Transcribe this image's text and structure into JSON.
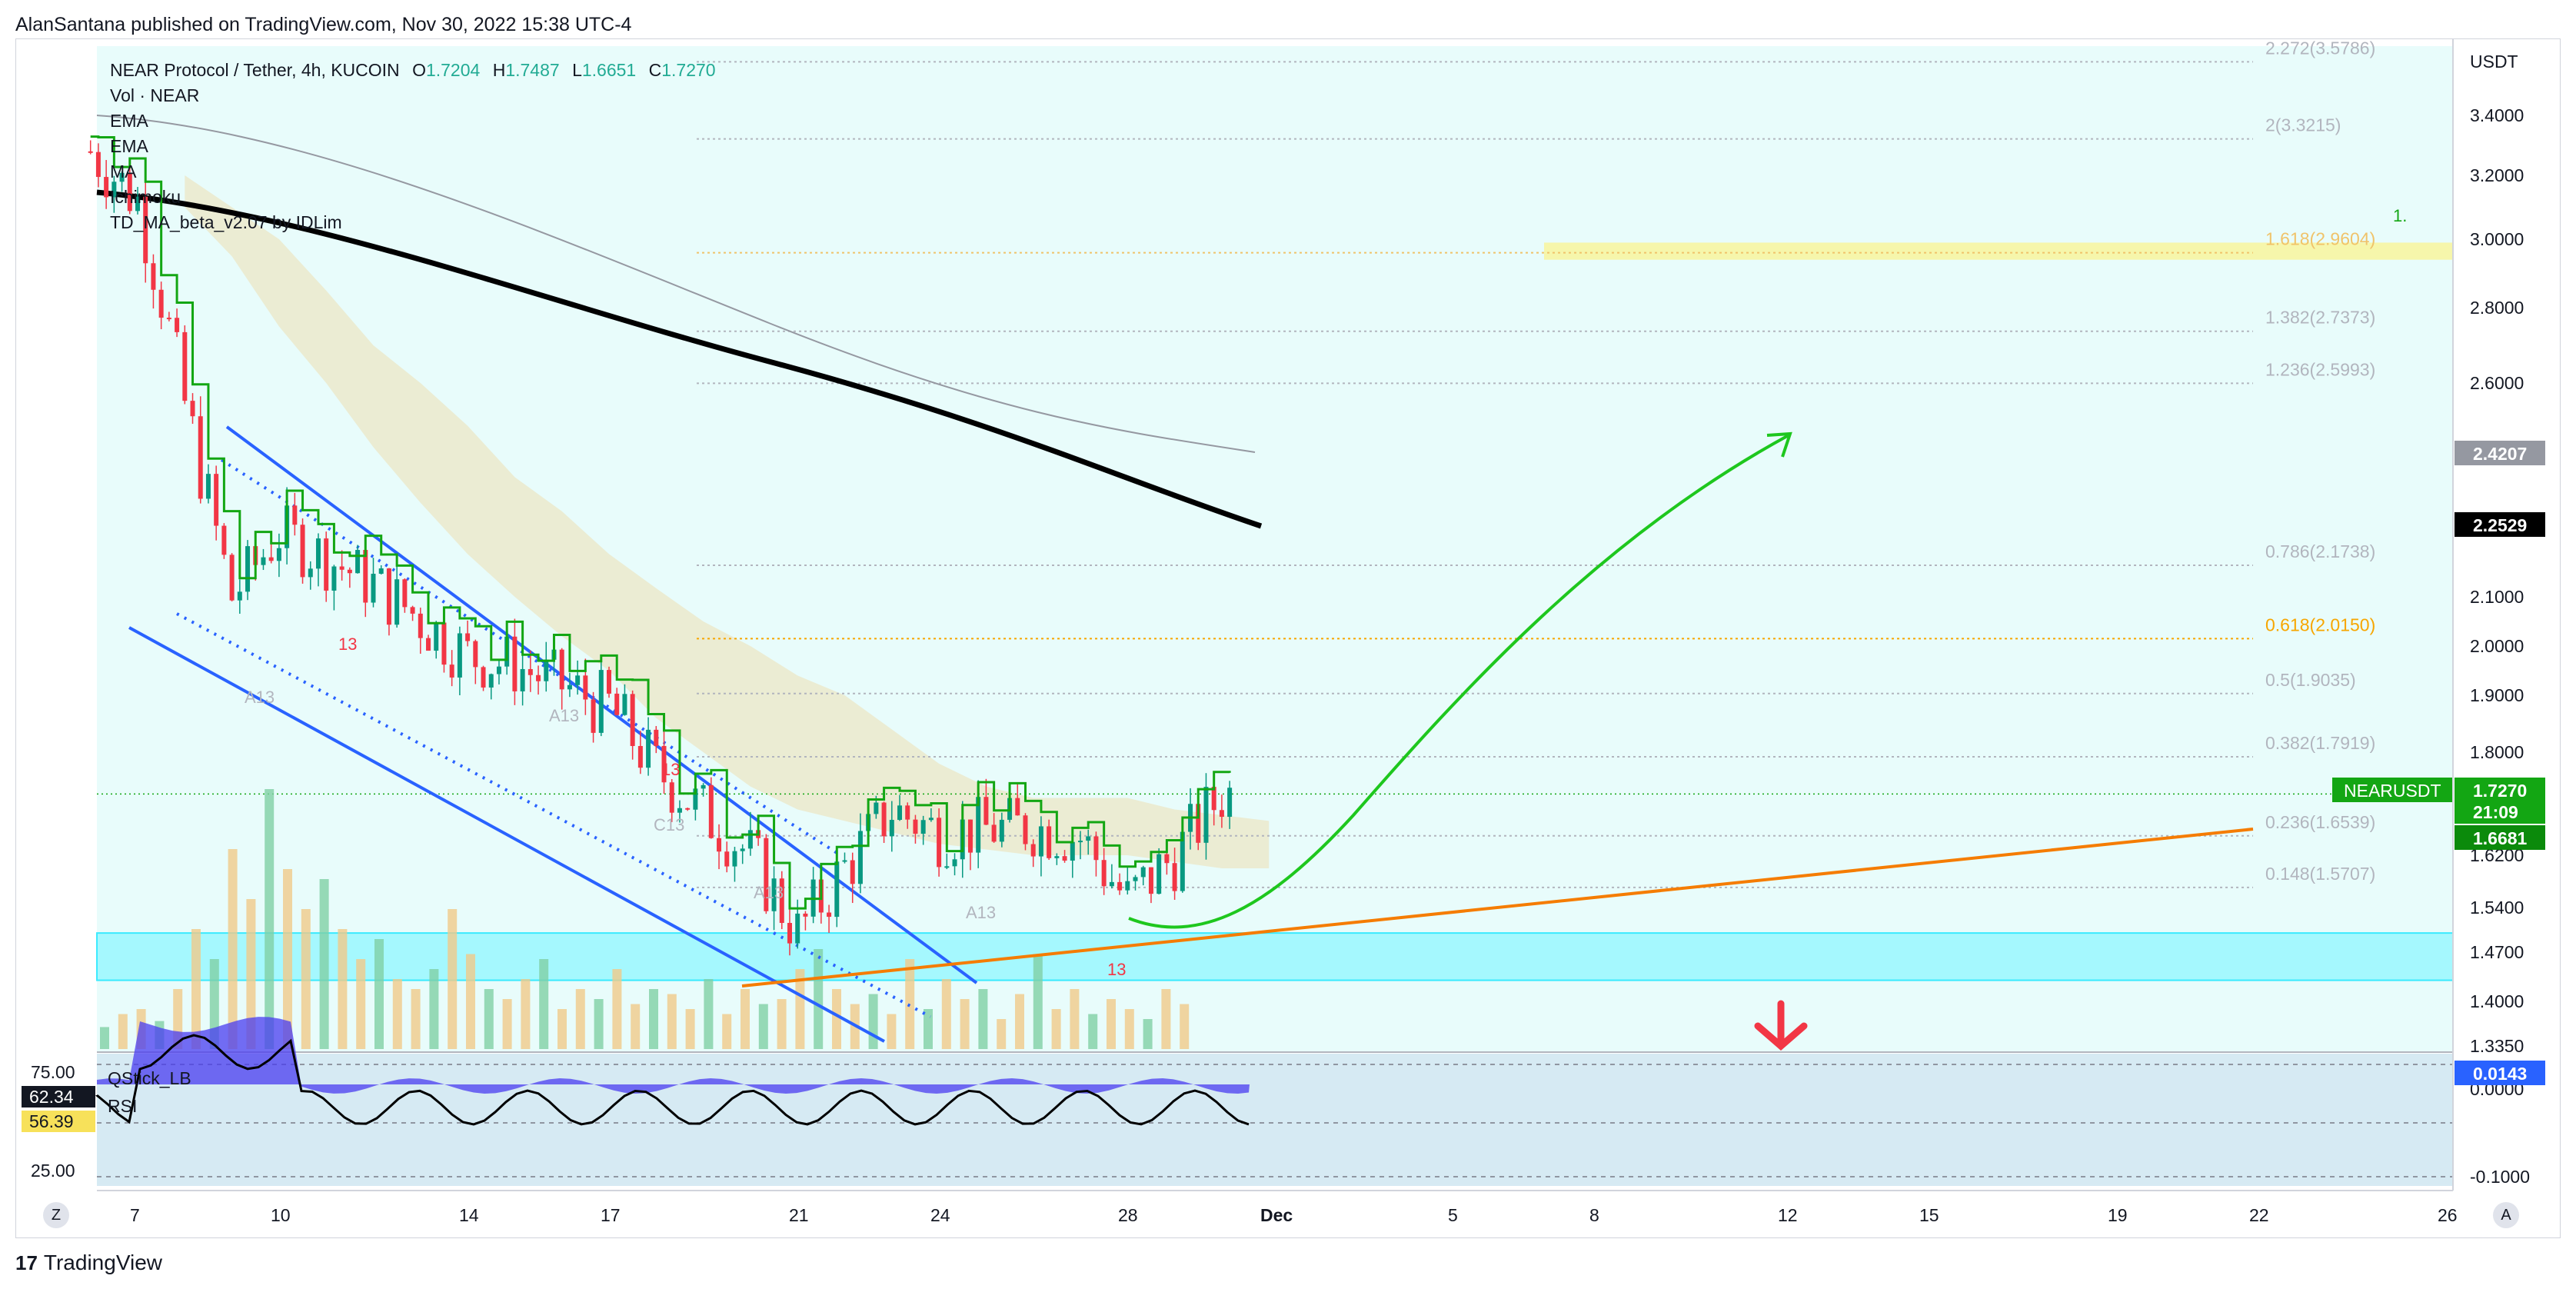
{
  "header": {
    "published": "AlanSantana published on TradingView.com, Nov 30, 2022 15:38 UTC-4"
  },
  "legend": {
    "symbol": "NEAR Protocol / Tether, 4h, KUCOIN",
    "o_label": "O",
    "o": "1.7204",
    "h_label": "H",
    "h": "1.7487",
    "l_label": "L",
    "l": "1.6651",
    "c_label": "C",
    "c": "1.7270",
    "indicators": [
      "Vol · NEAR",
      "EMA",
      "EMA",
      "MA",
      "Ichimoku",
      "TD_MA_beta_v2.07 by IDLim"
    ]
  },
  "oscillator": {
    "name": "QStick_LB",
    "name2": "RSI",
    "levels": [
      "75.00",
      "25.00"
    ],
    "badge1": "62.34",
    "badge2": "56.39"
  },
  "price_axis": {
    "currency": "USDT",
    "ticks": [
      "3.4000",
      "3.2000",
      "3.0000",
      "2.8000",
      "2.6000",
      "2.1000",
      "2.0000",
      "1.9000",
      "1.8000",
      "1.6200",
      "1.5400",
      "1.4700",
      "1.4000",
      "1.3350",
      "0.0000",
      "-0.1000"
    ],
    "badges": {
      "ema200": "2.4207",
      "ema100": "2.2529",
      "symbol": "NEARUSDT",
      "last": "1.7270",
      "countdown": "21:09",
      "tenkan": "1.6681",
      "qstick": "0.0143"
    }
  },
  "fib_levels": [
    {
      "label": "2.272(3.5786)",
      "price": 3.5786,
      "color": "#b2b5be"
    },
    {
      "label": "2(3.3215)",
      "price": 3.3215,
      "color": "#b2b5be"
    },
    {
      "label": "1.618(2.9604)",
      "price": 2.9604,
      "color": "#f0c36a"
    },
    {
      "label": "1.382(2.7373)",
      "price": 2.7373,
      "color": "#b2b5be"
    },
    {
      "label": "1.236(2.5993)",
      "price": 2.5993,
      "color": "#b2b5be"
    },
    {
      "label": "0.786(2.1738)",
      "price": 2.1738,
      "color": "#b2b5be"
    },
    {
      "label": "0.618(2.0150)",
      "price": 2.015,
      "color": "#f7a600"
    },
    {
      "label": "0.5(1.9035)",
      "price": 1.9035,
      "color": "#b2b5be"
    },
    {
      "label": "0.382(1.7919)",
      "price": 1.7919,
      "color": "#b2b5be"
    },
    {
      "label": "0.236(1.6539)",
      "price": 1.6539,
      "color": "#b2b5be"
    },
    {
      "label": "0.148(1.5707)",
      "price": 1.5707,
      "color": "#b2b5be"
    }
  ],
  "time_axis": {
    "labels": [
      "7",
      "10",
      "14",
      "17",
      "21",
      "24",
      "28",
      "Dec",
      "5",
      "8",
      "12",
      "15",
      "19",
      "22",
      "26"
    ],
    "btn_left": "Z",
    "btn_right": "A"
  },
  "study_labels": [
    "A13",
    "13",
    "A13",
    "13",
    "C13",
    "A13",
    "A13",
    "13",
    "1."
  ],
  "colors": {
    "up": "#089981",
    "down": "#f23645",
    "tenkan": "#13a613",
    "ema_black": "#000000",
    "ema_grey": "#9598a1",
    "channel": "#2962ff",
    "support": "#f57c00",
    "cyan_zone": "#00e5ff",
    "yellow_zone": "#fff176",
    "arrow_green": "#1ec71e",
    "arrow_red": "#f23645",
    "bg_tint": "#e8fcfb",
    "cloud": "#ece6c2"
  },
  "brand": {
    "name": "TradingView",
    "logo": "17"
  },
  "chart_data": {
    "type": "candlestick",
    "title": "NEAR Protocol / Tether, 4h, KUCOIN",
    "xlabel": "",
    "ylabel": "USDT",
    "x_ticks": [
      "7",
      "10",
      "14",
      "17",
      "21",
      "24",
      "28",
      "Dec",
      "5",
      "8",
      "12",
      "15",
      "19",
      "22",
      "26"
    ],
    "ylim": [
      1.335,
      3.55
    ],
    "close_path": [
      [
        "Nov 6",
        3.28
      ],
      [
        "Nov 7",
        3.12
      ],
      [
        "Nov 8",
        2.55
      ],
      [
        "Nov 9",
        2.1
      ],
      [
        "Nov 10",
        2.25
      ],
      [
        "Nov 12",
        2.13
      ],
      [
        "Nov 14",
        1.98
      ],
      [
        "Nov 15",
        1.96
      ],
      [
        "Nov 17",
        1.88
      ],
      [
        "Nov 18",
        1.77
      ],
      [
        "Nov 20",
        1.62
      ],
      [
        "Nov 21",
        1.5
      ],
      [
        "Nov 22",
        1.6
      ],
      [
        "Nov 23",
        1.7
      ],
      [
        "Nov 24",
        1.66
      ],
      [
        "Nov 26",
        1.67
      ],
      [
        "Nov 27",
        1.65
      ],
      [
        "Nov 28",
        1.55
      ],
      [
        "Nov 29",
        1.62
      ],
      [
        "Nov 30",
        1.727
      ]
    ],
    "support_zone": [
      1.43,
      1.5
    ],
    "target_zone": [
      2.94,
      2.99
    ],
    "projection": {
      "from": [
        "Nov 28",
        1.5
      ],
      "to": [
        "Dec 12",
        2.45
      ]
    },
    "oscillator_range": [
      -0.1,
      0.0143
    ]
  }
}
